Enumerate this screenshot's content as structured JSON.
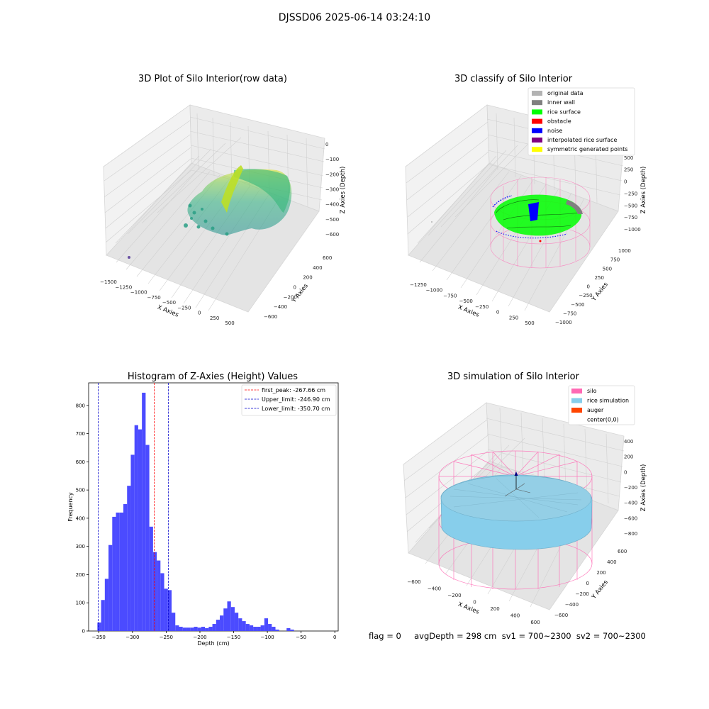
{
  "suptitle": "DJSSD06 2025-06-14 03:24:10",
  "footer_text": "flag = 0     avgDepth = 298 cm  sv1 = 700~2300  sv2 = 700~2300",
  "colors": {
    "hist_bar": "#4b4bff",
    "first_peak_line": "#ff0000",
    "limit_lines": "#0000cc",
    "original_data": "#b3b3b3",
    "inner_wall": "#808080",
    "rice_surface": "#00ff00",
    "obstacle": "#ff0000",
    "noise": "#0000ff",
    "interpolated_rice_surface": "#800080",
    "symmetric_generated_points": "#ffff00",
    "silo": "#ff69b4",
    "rice_simulation": "#87ceeb",
    "auger": "#ff4500"
  },
  "chart_data": [
    {
      "type": "scatter",
      "dims": "3d",
      "title": "3D Plot of Silo Interior(row data)",
      "xlabel": "X Axies",
      "ylabel": "Y Axies",
      "zlabel": "Z Axies (Depth)",
      "x_ticks": [
        "−1500",
        "−1250",
        "−1000",
        "−750",
        "−500",
        "−250",
        "0",
        "250",
        "500"
      ],
      "y_ticks": [
        "−600",
        "−400",
        "−200",
        "0",
        "200",
        "400",
        "600"
      ],
      "z_ticks": [
        "0",
        "−100",
        "−200",
        "−300",
        "−400",
        "−500",
        "−600"
      ],
      "colormap": "viridis"
    },
    {
      "type": "scatter",
      "dims": "3d",
      "title": "3D classify of Silo Interior",
      "xlabel": "X Axies",
      "ylabel": "Y Axies",
      "zlabel": "Z Axies (Depth)",
      "x_ticks": [
        "−1250",
        "−1000",
        "−750",
        "−500",
        "−250",
        "0",
        "250",
        "500"
      ],
      "y_ticks": [
        "−1000",
        "−750",
        "−500",
        "−250",
        "0",
        "250",
        "500",
        "750",
        "1000"
      ],
      "z_ticks": [
        "750",
        "500",
        "250",
        "0",
        "−250",
        "−500",
        "−750",
        "−1000"
      ],
      "legend": [
        "original data",
        "inner wall",
        "rice surface",
        "obstacle",
        "noise",
        "interpolated rice surface",
        "symmetric generated points"
      ],
      "legend_loc": "upper right"
    },
    {
      "type": "bar",
      "title": "Histogram of Z-Axies (Height) Values",
      "xlabel": "Depth (cm)",
      "ylabel": "Frequency",
      "xlim": [
        -365,
        5
      ],
      "ylim": [
        0,
        880
      ],
      "x_ticks": [
        -350,
        -300,
        -250,
        -200,
        -150,
        -100,
        -50,
        0
      ],
      "y_ticks": [
        0,
        100,
        200,
        300,
        400,
        500,
        600,
        700,
        800
      ],
      "bin_start": -352,
      "bin_width": 5.5,
      "values": [
        30,
        110,
        185,
        305,
        405,
        420,
        420,
        450,
        515,
        625,
        730,
        715,
        845,
        660,
        370,
        280,
        250,
        205,
        150,
        145,
        65,
        20,
        15,
        12,
        12,
        12,
        15,
        12,
        15,
        10,
        15,
        25,
        40,
        55,
        80,
        105,
        85,
        65,
        45,
        35,
        25,
        20,
        15,
        15,
        20,
        45,
        25,
        15,
        5,
        0,
        0,
        10,
        5
      ],
      "vlines": [
        {
          "x": -267.66,
          "label": "first_peak: -267.66 cm",
          "color": "#ff0000"
        },
        {
          "x": -246.9,
          "label": "Upper_limit: -246.90 cm",
          "color": "#0000cc"
        },
        {
          "x": -350.7,
          "label": "Lower_limit: -350.70 cm",
          "color": "#0000cc"
        }
      ],
      "legend_loc": "upper right",
      "grid": false
    },
    {
      "type": "scatter",
      "dims": "3d",
      "title": "3D simulation of Silo Interior",
      "xlabel": "X Axies",
      "ylabel": "Y Axies",
      "zlabel": "Z Axies (Depth)",
      "x_ticks": [
        "−600",
        "−400",
        "−200",
        "0",
        "200",
        "400",
        "600"
      ],
      "y_ticks": [
        "−600",
        "−400",
        "−200",
        "0",
        "200",
        "400",
        "600"
      ],
      "z_ticks": [
        "400",
        "200",
        "0",
        "−200",
        "−400",
        "−600",
        "−800"
      ],
      "legend": [
        "silo",
        "rice simulation",
        "auger",
        "center(0,0)"
      ],
      "legend_loc": "upper right"
    }
  ]
}
